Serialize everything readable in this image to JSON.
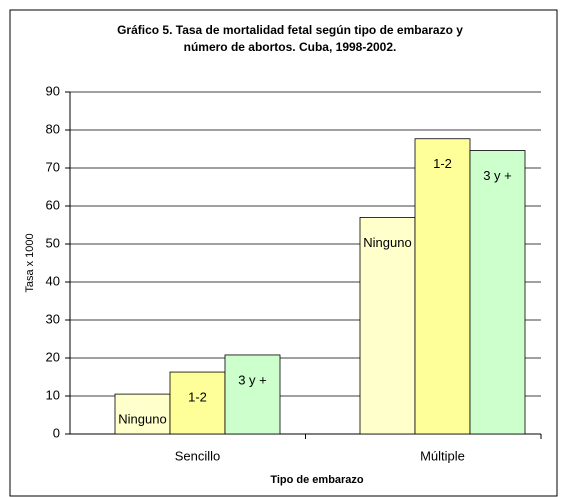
{
  "chart_data": {
    "type": "bar",
    "title": "Gráfico 5. Tasa de mortalidad fetal según tipo de embarazo y",
    "subtitle": "número de abortos. Cuba, 1998-2002.",
    "x_label": "Tipo de embarazo",
    "y_label": "Tasa x 1000",
    "categories": [
      "Sencillo",
      "Múltiple"
    ],
    "series": [
      {
        "name": "Ninguno",
        "color": "#ffffcc",
        "values": [
          10.5,
          57
        ]
      },
      {
        "name": "1-2",
        "color": "#ffff99",
        "values": [
          16.3,
          77.7
        ]
      },
      {
        "name": "3 y +",
        "color": "#ccffcc",
        "values": [
          20.8,
          74.6
        ]
      }
    ],
    "ylim": [
      0,
      90
    ],
    "yticks": [
      0,
      10,
      20,
      30,
      40,
      50,
      60,
      70,
      80,
      90
    ],
    "grid": true
  }
}
